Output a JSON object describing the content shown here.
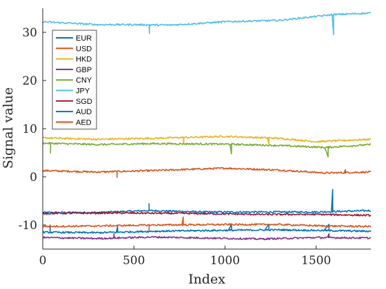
{
  "chart_data": {
    "type": "line",
    "xlabel": "Index",
    "ylabel": "Signal value",
    "xlim": [
      0,
      1800
    ],
    "ylim": [
      -15,
      35
    ],
    "xticks": [
      0,
      500,
      1000,
      1500
    ],
    "yticks": [
      -10,
      0,
      10,
      20,
      30
    ],
    "grid": false,
    "legend_position": "top-left",
    "series": [
      {
        "name": "EUR",
        "color": "#0072BD",
        "base": -7.4,
        "keypoints": [
          [
            0,
            -7.4
          ],
          [
            300,
            -7.4
          ],
          [
            580,
            -7.0
          ],
          [
            900,
            -7.3
          ],
          [
            1200,
            -7.3
          ],
          [
            1500,
            -7.3
          ],
          [
            1800,
            -7.0
          ]
        ],
        "spikes": [
          [
            583,
            1.4
          ],
          [
            1590,
            4.6
          ]
        ]
      },
      {
        "name": "USD",
        "color": "#D95319",
        "base": 1.3,
        "keypoints": [
          [
            0,
            1.3
          ],
          [
            300,
            1.0
          ],
          [
            600,
            1.3
          ],
          [
            1000,
            1.8
          ],
          [
            1300,
            1.4
          ],
          [
            1550,
            0.8
          ],
          [
            1800,
            1.0
          ]
        ],
        "spikes": [
          [
            407,
            -1.2
          ],
          [
            1660,
            0.6
          ]
        ]
      },
      {
        "name": "HKD",
        "color": "#EDB120",
        "base": 8.1,
        "keypoints": [
          [
            0,
            8.1
          ],
          [
            300,
            7.8
          ],
          [
            600,
            8.0
          ],
          [
            1000,
            8.4
          ],
          [
            1300,
            8.0
          ],
          [
            1500,
            7.3
          ],
          [
            1800,
            7.8
          ]
        ],
        "spikes": [
          [
            773,
            -1.3
          ],
          [
            1240,
            -1.2
          ]
        ]
      },
      {
        "name": "CNY",
        "color": "#77AC30",
        "base": 7.0,
        "keypoints": [
          [
            0,
            7.0
          ],
          [
            300,
            6.7
          ],
          [
            600,
            6.9
          ],
          [
            1000,
            6.8
          ],
          [
            1300,
            6.5
          ],
          [
            1550,
            6.1
          ],
          [
            1800,
            6.7
          ]
        ],
        "spikes": [
          [
            42,
            -2.0
          ],
          [
            1035,
            -2.0
          ],
          [
            1565,
            -2.0
          ]
        ]
      },
      {
        "name": "JPY",
        "color": "#4DBEEE",
        "base": 32.2,
        "keypoints": [
          [
            0,
            32.2
          ],
          [
            300,
            31.6
          ],
          [
            500,
            31.6
          ],
          [
            700,
            31.5
          ],
          [
            1000,
            32.2
          ],
          [
            1300,
            32.5
          ],
          [
            1600,
            33.7
          ],
          [
            1800,
            34.0
          ]
        ],
        "spikes": [
          [
            585,
            -1.8
          ],
          [
            1595,
            -4.2
          ]
        ]
      },
      {
        "name": "SGD",
        "color": "#A2142F",
        "base": -7.6,
        "keypoints": [
          [
            0,
            -7.6
          ],
          [
            400,
            -7.5
          ],
          [
            800,
            -7.6
          ],
          [
            1200,
            -7.8
          ],
          [
            1500,
            -7.8
          ],
          [
            1800,
            -8.0
          ]
        ],
        "spikes": []
      },
      {
        "name": "AUD",
        "color": "#0072BD",
        "base": -11.5,
        "keypoints": [
          [
            0,
            -11.5
          ],
          [
            300,
            -11.6
          ],
          [
            600,
            -11.3
          ],
          [
            1000,
            -11.1
          ],
          [
            1300,
            -11.0
          ],
          [
            1800,
            -11.3
          ]
        ],
        "spikes": [
          [
            40,
            1.5
          ],
          [
            410,
            1.2
          ],
          [
            1035,
            1.2
          ],
          [
            1240,
            1.2
          ],
          [
            1570,
            1.3
          ]
        ]
      },
      {
        "name": "AED",
        "color": "#D95319",
        "base": -10.3,
        "keypoints": [
          [
            0,
            -10.3
          ],
          [
            300,
            -10.2
          ],
          [
            600,
            -10.0
          ],
          [
            1000,
            -9.9
          ],
          [
            1300,
            -9.9
          ],
          [
            1550,
            -10.2
          ],
          [
            1800,
            -10.3
          ]
        ],
        "spikes": [
          [
            583,
            -1.0
          ],
          [
            770,
            1.6
          ]
        ]
      },
      {
        "name": "",
        "color": "#7E2F8E",
        "base": -12.6,
        "keypoints": [
          [
            0,
            -12.6
          ],
          [
            300,
            -12.8
          ],
          [
            600,
            -12.5
          ],
          [
            900,
            -12.7
          ],
          [
            1200,
            -12.9
          ],
          [
            1500,
            -12.6
          ],
          [
            1800,
            -12.7
          ]
        ],
        "spikes": [
          [
            390,
            0.9
          ],
          [
            1570,
            0.8
          ]
        ]
      }
    ],
    "legend_entries": [
      {
        "label": "EUR",
        "color": "#0072BD"
      },
      {
        "label": "USD",
        "color": "#D95319"
      },
      {
        "label": "HKD",
        "color": "#EDB120"
      },
      {
        "label": "GBP",
        "color": "#7E2F8E"
      },
      {
        "label": "CNY",
        "color": "#77AC30"
      },
      {
        "label": "JPY",
        "color": "#4DBEEE"
      },
      {
        "label": "SGD",
        "color": "#A2142F"
      },
      {
        "label": "AUD",
        "color": "#0072BD"
      },
      {
        "label": "AED",
        "color": "#D95319"
      }
    ]
  }
}
